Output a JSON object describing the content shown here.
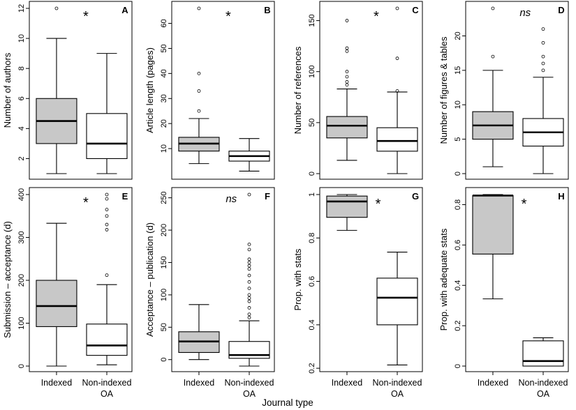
{
  "figure": {
    "xlabel": "Journal type",
    "colors": {
      "indexed_fill": "#c8c8c8",
      "nonindexed_fill": "#ffffff",
      "stroke": "#000000"
    }
  },
  "chart_data": [
    {
      "type": "box",
      "panel": "A",
      "significance": "*",
      "ylabel": "Number of authors",
      "ylim": [
        1,
        12
      ],
      "yticks": [
        2,
        4,
        6,
        8,
        10,
        12
      ],
      "categories": [
        "Indexed",
        "Non-indexed OA"
      ],
      "boxes": [
        {
          "category": "Indexed",
          "whisker_low": 1,
          "q1": 3,
          "median": 4.5,
          "q3": 6,
          "whisker_high": 10,
          "outliers": [
            12
          ]
        },
        {
          "category": "Non-indexed OA",
          "whisker_low": 1,
          "q1": 2,
          "median": 3,
          "q3": 5,
          "whisker_high": 9,
          "outliers": []
        }
      ]
    },
    {
      "type": "box",
      "panel": "B",
      "significance": "*",
      "ylabel": "Article length (pages)",
      "ylim": [
        0,
        66
      ],
      "yticks": [
        10,
        20,
        30,
        40,
        50,
        60
      ],
      "categories": [
        "Indexed",
        "Non-indexed OA"
      ],
      "boxes": [
        {
          "category": "Indexed",
          "whisker_low": 4,
          "q1": 9,
          "median": 12,
          "q3": 14.5,
          "whisker_high": 22,
          "outliers": [
            25,
            33,
            40,
            66
          ]
        },
        {
          "category": "Non-indexed OA",
          "whisker_low": 1,
          "q1": 5,
          "median": 7,
          "q3": 9,
          "whisker_high": 14,
          "outliers": []
        }
      ]
    },
    {
      "type": "box",
      "panel": "C",
      "significance": "*",
      "ylabel": "Number of references",
      "ylim": [
        0,
        162
      ],
      "yticks": [
        0,
        50,
        100,
        150
      ],
      "categories": [
        "Indexed",
        "Non-indexed OA"
      ],
      "boxes": [
        {
          "category": "Indexed",
          "whisker_low": 13,
          "q1": 35,
          "median": 47,
          "q3": 56,
          "whisker_high": 83,
          "outliers": [
            87,
            90,
            95,
            100,
            120,
            123,
            150
          ]
        },
        {
          "category": "Non-indexed OA",
          "whisker_low": 0,
          "q1": 22,
          "median": 32,
          "q3": 45,
          "whisker_high": 80,
          "outliers": [
            81,
            113,
            162
          ]
        }
      ]
    },
    {
      "type": "box",
      "panel": "D",
      "significance": "ns",
      "ylabel": "Number of figures & tables",
      "ylim": [
        0,
        24
      ],
      "yticks": [
        0,
        5,
        10,
        15,
        20
      ],
      "categories": [
        "Indexed",
        "Non-indexed OA"
      ],
      "boxes": [
        {
          "category": "Indexed",
          "whisker_low": 1,
          "q1": 5,
          "median": 7,
          "q3": 9,
          "whisker_high": 15,
          "outliers": [
            17,
            24
          ]
        },
        {
          "category": "Non-indexed OA",
          "whisker_low": 0,
          "q1": 4,
          "median": 6,
          "q3": 8,
          "whisker_high": 14,
          "outliers": [
            15,
            16,
            17,
            19,
            21
          ]
        }
      ]
    },
    {
      "type": "box",
      "panel": "E",
      "significance": "*",
      "ylabel": "Submission – acceptance (d)",
      "ylim": [
        0,
        400
      ],
      "yticks": [
        0,
        100,
        200,
        300,
        400
      ],
      "categories": [
        "Indexed",
        "Non-indexed OA"
      ],
      "boxes": [
        {
          "category": "Indexed",
          "whisker_low": 0,
          "q1": 92,
          "median": 140,
          "q3": 200,
          "whisker_high": 333,
          "outliers": []
        },
        {
          "category": "Non-indexed OA",
          "whisker_low": 3,
          "q1": 25,
          "median": 48,
          "q3": 98,
          "whisker_high": 190,
          "outliers": [
            212,
            318,
            330,
            350,
            365,
            390,
            400
          ]
        }
      ]
    },
    {
      "type": "box",
      "panel": "F",
      "significance": "ns",
      "ylabel": "Acceptance – publication (d)",
      "ylim": [
        -10,
        255
      ],
      "yticks": [
        0,
        50,
        100,
        150,
        200,
        250
      ],
      "categories": [
        "Indexed",
        "Non-indexed OA"
      ],
      "boxes": [
        {
          "category": "Indexed",
          "whisker_low": 0,
          "q1": 11,
          "median": 28,
          "q3": 43,
          "whisker_high": 85,
          "outliers": []
        },
        {
          "category": "Non-indexed OA",
          "whisker_low": -10,
          "q1": 2,
          "median": 7,
          "q3": 28,
          "whisker_high": 60,
          "outliers": [
            65,
            70,
            80,
            90,
            95,
            100,
            110,
            120,
            130,
            140,
            145,
            150,
            155,
            170,
            178,
            255
          ]
        }
      ]
    },
    {
      "type": "box",
      "panel": "G",
      "significance": "*",
      "ylabel": "Prop. with stats",
      "ylim": [
        0.21,
        1.0
      ],
      "yticks": [
        0.2,
        0.4,
        0.6,
        0.8,
        1.0
      ],
      "categories": [
        "Indexed",
        "Non-indexed OA"
      ],
      "boxes": [
        {
          "category": "Indexed",
          "whisker_low": 0.835,
          "q1": 0.895,
          "median": 0.968,
          "q3": 0.993,
          "whisker_high": 1.0,
          "outliers": []
        },
        {
          "category": "Non-indexed OA",
          "whisker_low": 0.215,
          "q1": 0.4,
          "median": 0.525,
          "q3": 0.615,
          "whisker_high": 0.735,
          "outliers": []
        }
      ]
    },
    {
      "type": "box",
      "panel": "H",
      "significance": "*",
      "ylabel": "Prop. with adequate stats",
      "ylim": [
        0.0,
        0.85
      ],
      "yticks": [
        0.0,
        0.2,
        0.4,
        0.6,
        0.8
      ],
      "categories": [
        "Indexed",
        "Non-indexed OA"
      ],
      "boxes": [
        {
          "category": "Indexed",
          "whisker_low": 0.333,
          "q1": 0.555,
          "median": 0.845,
          "q3": 0.845,
          "whisker_high": 0.85,
          "outliers": []
        },
        {
          "category": "Non-indexed OA",
          "whisker_low": 0.0,
          "q1": 0.0,
          "median": 0.025,
          "q3": 0.125,
          "whisker_high": 0.14,
          "outliers": []
        }
      ]
    }
  ]
}
